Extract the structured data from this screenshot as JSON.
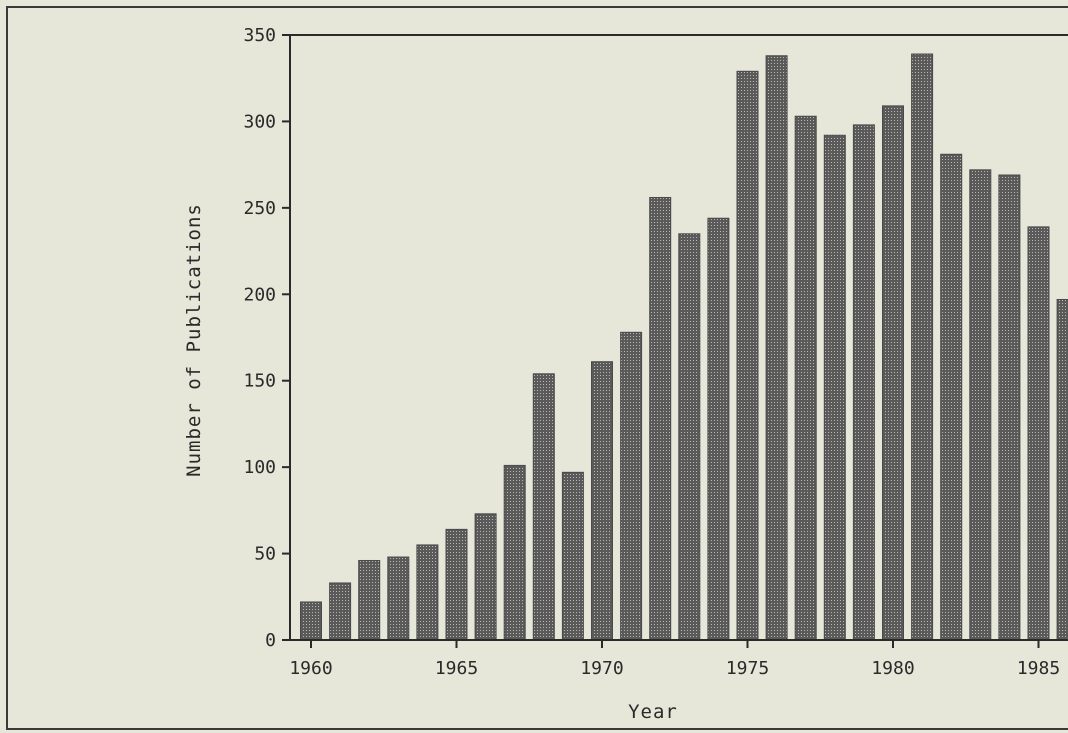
{
  "chart_data": {
    "type": "bar",
    "xlabel": "Year",
    "ylabel": "Number of Publications",
    "ylim": [
      0,
      350
    ],
    "yticks": [
      0,
      50,
      100,
      150,
      200,
      250,
      300,
      350
    ],
    "xticks": [
      1960,
      1965,
      1970,
      1975,
      1980,
      1985
    ],
    "grid": false,
    "bar_color": "#4a4a4a",
    "x": [
      1960,
      1961,
      1962,
      1963,
      1964,
      1965,
      1966,
      1967,
      1968,
      1969,
      1970,
      1971,
      1972,
      1973,
      1974,
      1975,
      1976,
      1977,
      1978,
      1979,
      1980,
      1981,
      1982,
      1983,
      1984,
      1985,
      1986
    ],
    "values": [
      22,
      33,
      46,
      48,
      55,
      64,
      73,
      101,
      154,
      97,
      161,
      178,
      256,
      235,
      244,
      329,
      338,
      303,
      292,
      298,
      309,
      339,
      281,
      272,
      269,
      239,
      197
    ]
  }
}
